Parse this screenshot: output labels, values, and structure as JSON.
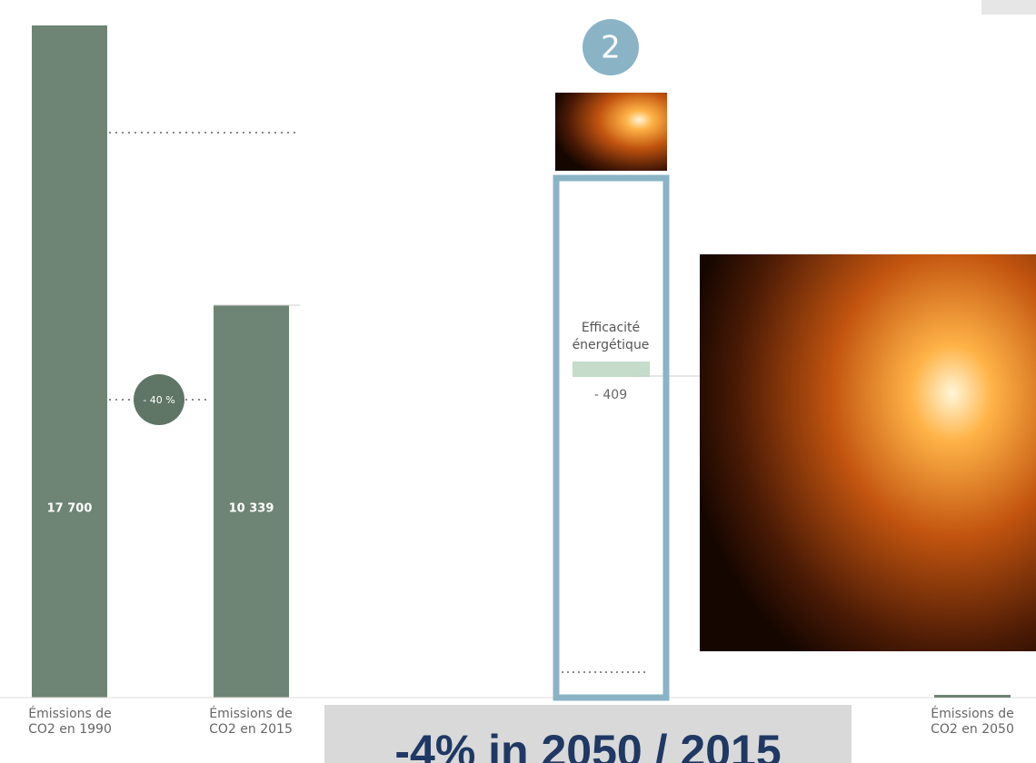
{
  "chart_data": {
    "type": "waterfall",
    "categories": [
      "Émissions de CO2 en 1990",
      "Émissions de CO2 en 2015",
      "Efficacité énergétique",
      "Émissions de CO2 en 2050"
    ],
    "values": [
      17700,
      10339,
      -409,
      null
    ],
    "value_labels": [
      "17 700",
      "10 339",
      "- 409",
      null
    ],
    "ylim": [
      0,
      17700
    ],
    "color": "#6e8474",
    "step_color": "#c5dccb",
    "change_badge": "- 40 %",
    "step_number": "2",
    "footer": "-4% in 2050 / 2015"
  }
}
